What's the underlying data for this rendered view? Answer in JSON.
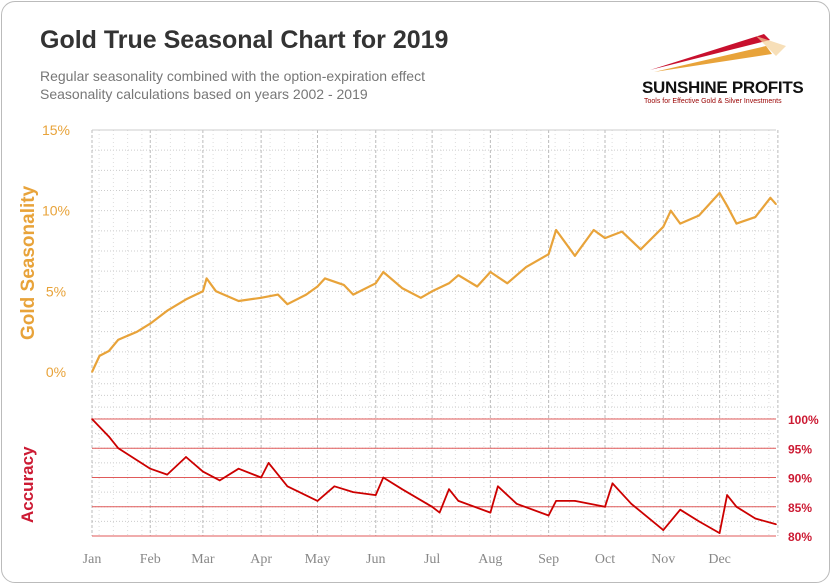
{
  "chart_data": [
    {
      "type": "line",
      "title": "Gold True Seasonal Chart for 2019",
      "subtitle": [
        "Regular seasonality combined with the option-expiration effect",
        "Seasonality calculations based on years 2002 - 2019"
      ],
      "ylabel": "Gold Seasonality",
      "ylim": [
        0,
        15
      ],
      "yticks": [
        "0%",
        "5%",
        "10%",
        "15%"
      ],
      "grid": true,
      "color": "#e8a33a",
      "x": [
        "01-01",
        "01-05",
        "01-10",
        "01-15",
        "01-25",
        "02-01",
        "02-10",
        "02-20",
        "03-01",
        "03-03",
        "03-08",
        "03-20",
        "04-01",
        "04-10",
        "04-15",
        "04-25",
        "05-01",
        "05-05",
        "05-15",
        "05-20",
        "06-01",
        "06-05",
        "06-15",
        "06-25",
        "07-01",
        "07-10",
        "07-15",
        "07-25",
        "08-01",
        "08-10",
        "08-20",
        "09-01",
        "09-05",
        "09-15",
        "09-25",
        "10-01",
        "10-10",
        "10-20",
        "11-01",
        "11-05",
        "11-10",
        "11-20",
        "12-01",
        "12-05",
        "12-10",
        "12-20",
        "12-28",
        "12-31"
      ],
      "values": [
        0.0,
        1.0,
        1.3,
        2.0,
        2.5,
        3.0,
        3.8,
        4.5,
        5.0,
        5.8,
        5.0,
        4.4,
        4.6,
        4.8,
        4.2,
        4.8,
        5.3,
        5.8,
        5.4,
        4.8,
        5.5,
        6.2,
        5.2,
        4.6,
        5.0,
        5.5,
        6.0,
        5.3,
        6.2,
        5.5,
        6.5,
        7.3,
        8.8,
        7.2,
        8.8,
        8.3,
        8.7,
        7.6,
        9.0,
        10.0,
        9.2,
        9.7,
        11.1,
        10.3,
        9.2,
        9.6,
        10.8,
        10.4
      ]
    },
    {
      "type": "line",
      "ylabel": "Accuracy",
      "ylim": [
        80,
        100
      ],
      "yticks": [
        "80%",
        "85%",
        "90%",
        "95%",
        "100%"
      ],
      "color": "#cc0000",
      "x": [
        "01-01",
        "01-10",
        "01-15",
        "02-01",
        "02-10",
        "02-20",
        "03-01",
        "03-10",
        "03-20",
        "04-01",
        "04-05",
        "04-15",
        "05-01",
        "05-10",
        "05-20",
        "06-01",
        "06-05",
        "06-15",
        "07-01",
        "07-05",
        "07-10",
        "07-15",
        "08-01",
        "08-05",
        "08-15",
        "09-01",
        "09-05",
        "09-15",
        "10-01",
        "10-05",
        "10-15",
        "11-01",
        "11-10",
        "11-20",
        "12-01",
        "12-05",
        "12-10",
        "12-20",
        "12-31"
      ],
      "values": [
        100,
        97,
        95,
        91.5,
        90.5,
        93.5,
        91,
        89.5,
        91.5,
        90,
        92.5,
        88.5,
        86,
        88.5,
        87.5,
        87,
        90,
        88,
        85,
        84,
        88,
        86,
        84,
        88.5,
        85.5,
        83.5,
        86,
        86,
        85,
        89,
        85.5,
        81,
        84.5,
        82.5,
        80.5,
        87,
        85,
        83,
        82
      ]
    }
  ],
  "months": [
    "Jan",
    "Feb",
    "Mar",
    "Apr",
    "May",
    "Jun",
    "Jul",
    "Aug",
    "Sep",
    "Oct",
    "Nov",
    "Dec"
  ],
  "logo": {
    "name": "SUNSHINE PROFITS",
    "tagline": "Tools for Effective Gold & Silver Investments"
  }
}
